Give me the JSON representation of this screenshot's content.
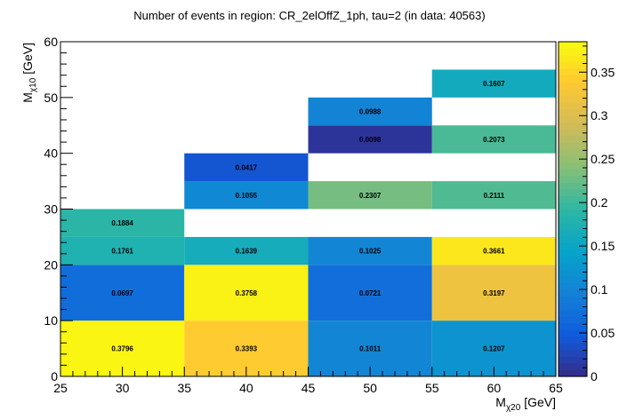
{
  "chart_data": {
    "type": "heatmap",
    "title": "Number of events in region: CR_2elOffZ_1ph, tau=2 (in data: 40563)",
    "xlabel": {
      "main": "M",
      "sub": "χ20",
      "unit": " [GeV]"
    },
    "ylabel": {
      "main": "M",
      "sub": "χ10",
      "unit": " [GeV]"
    },
    "xlim": [
      25,
      65
    ],
    "ylim": [
      0,
      60
    ],
    "x_ticks": [
      25,
      30,
      35,
      40,
      45,
      50,
      55,
      60,
      65
    ],
    "y_ticks": [
      0,
      10,
      20,
      30,
      40,
      50,
      60
    ],
    "zlim": [
      0,
      0.385
    ],
    "z_ticks": [
      0,
      0.05,
      0.1,
      0.15,
      0.2,
      0.25,
      0.3,
      0.35
    ],
    "z_tick_labels": [
      "0",
      "0.05",
      "0.1",
      "0.15",
      "0.2",
      "0.25",
      "0.3",
      "0.35"
    ],
    "cells": [
      {
        "x0": 25,
        "x1": 35,
        "y0": 0,
        "y1": 10,
        "value": 0.3796,
        "label": "0.3796"
      },
      {
        "x0": 25,
        "x1": 35,
        "y0": 10,
        "y1": 20,
        "value": 0.0697,
        "label": "0.0697"
      },
      {
        "x0": 25,
        "x1": 35,
        "y0": 20,
        "y1": 25,
        "value": 0.1761,
        "label": "0.1761"
      },
      {
        "x0": 25,
        "x1": 35,
        "y0": 25,
        "y1": 30,
        "value": 0.1884,
        "label": "0.1884"
      },
      {
        "x0": 35,
        "x1": 45,
        "y0": 0,
        "y1": 10,
        "value": 0.3393,
        "label": "0.3393"
      },
      {
        "x0": 35,
        "x1": 45,
        "y0": 10,
        "y1": 20,
        "value": 0.3758,
        "label": "0.3758"
      },
      {
        "x0": 35,
        "x1": 45,
        "y0": 20,
        "y1": 25,
        "value": 0.1639,
        "label": "0.1639"
      },
      {
        "x0": 35,
        "x1": 45,
        "y0": 30,
        "y1": 35,
        "value": 0.1055,
        "label": "0.1055"
      },
      {
        "x0": 35,
        "x1": 45,
        "y0": 35,
        "y1": 40,
        "value": 0.0417,
        "label": "0.0417"
      },
      {
        "x0": 45,
        "x1": 55,
        "y0": 0,
        "y1": 10,
        "value": 0.1011,
        "label": "0.1011"
      },
      {
        "x0": 45,
        "x1": 55,
        "y0": 10,
        "y1": 20,
        "value": 0.0721,
        "label": "0.0721"
      },
      {
        "x0": 45,
        "x1": 55,
        "y0": 20,
        "y1": 25,
        "value": 0.1025,
        "label": "0.1025"
      },
      {
        "x0": 45,
        "x1": 55,
        "y0": 30,
        "y1": 35,
        "value": 0.2307,
        "label": "0.2307"
      },
      {
        "x0": 45,
        "x1": 55,
        "y0": 40,
        "y1": 45,
        "value": 0.0098,
        "label": "0.0098"
      },
      {
        "x0": 45,
        "x1": 55,
        "y0": 45,
        "y1": 50,
        "value": 0.0988,
        "label": "0.0988"
      },
      {
        "x0": 55,
        "x1": 65,
        "y0": 0,
        "y1": 10,
        "value": 0.1207,
        "label": "0.1207"
      },
      {
        "x0": 55,
        "x1": 65,
        "y0": 10,
        "y1": 20,
        "value": 0.3197,
        "label": "0.3197"
      },
      {
        "x0": 55,
        "x1": 65,
        "y0": 20,
        "y1": 25,
        "value": 0.3661,
        "label": "0.3661"
      },
      {
        "x0": 55,
        "x1": 65,
        "y0": 30,
        "y1": 35,
        "value": 0.2111,
        "label": "0.2111"
      },
      {
        "x0": 55,
        "x1": 65,
        "y0": 40,
        "y1": 45,
        "value": 0.2073,
        "label": "0.2073"
      },
      {
        "x0": 55,
        "x1": 65,
        "y0": 50,
        "y1": 55,
        "value": 0.1607,
        "label": "0.1607"
      }
    ],
    "palette": [
      "#352a87",
      "#0f5cdd",
      "#1481d6",
      "#06a4ca",
      "#2eb7a4",
      "#87bf77",
      "#d1bb59",
      "#fec832",
      "#f9fb0e"
    ],
    "grid": false,
    "legend": "colorbar-right"
  }
}
